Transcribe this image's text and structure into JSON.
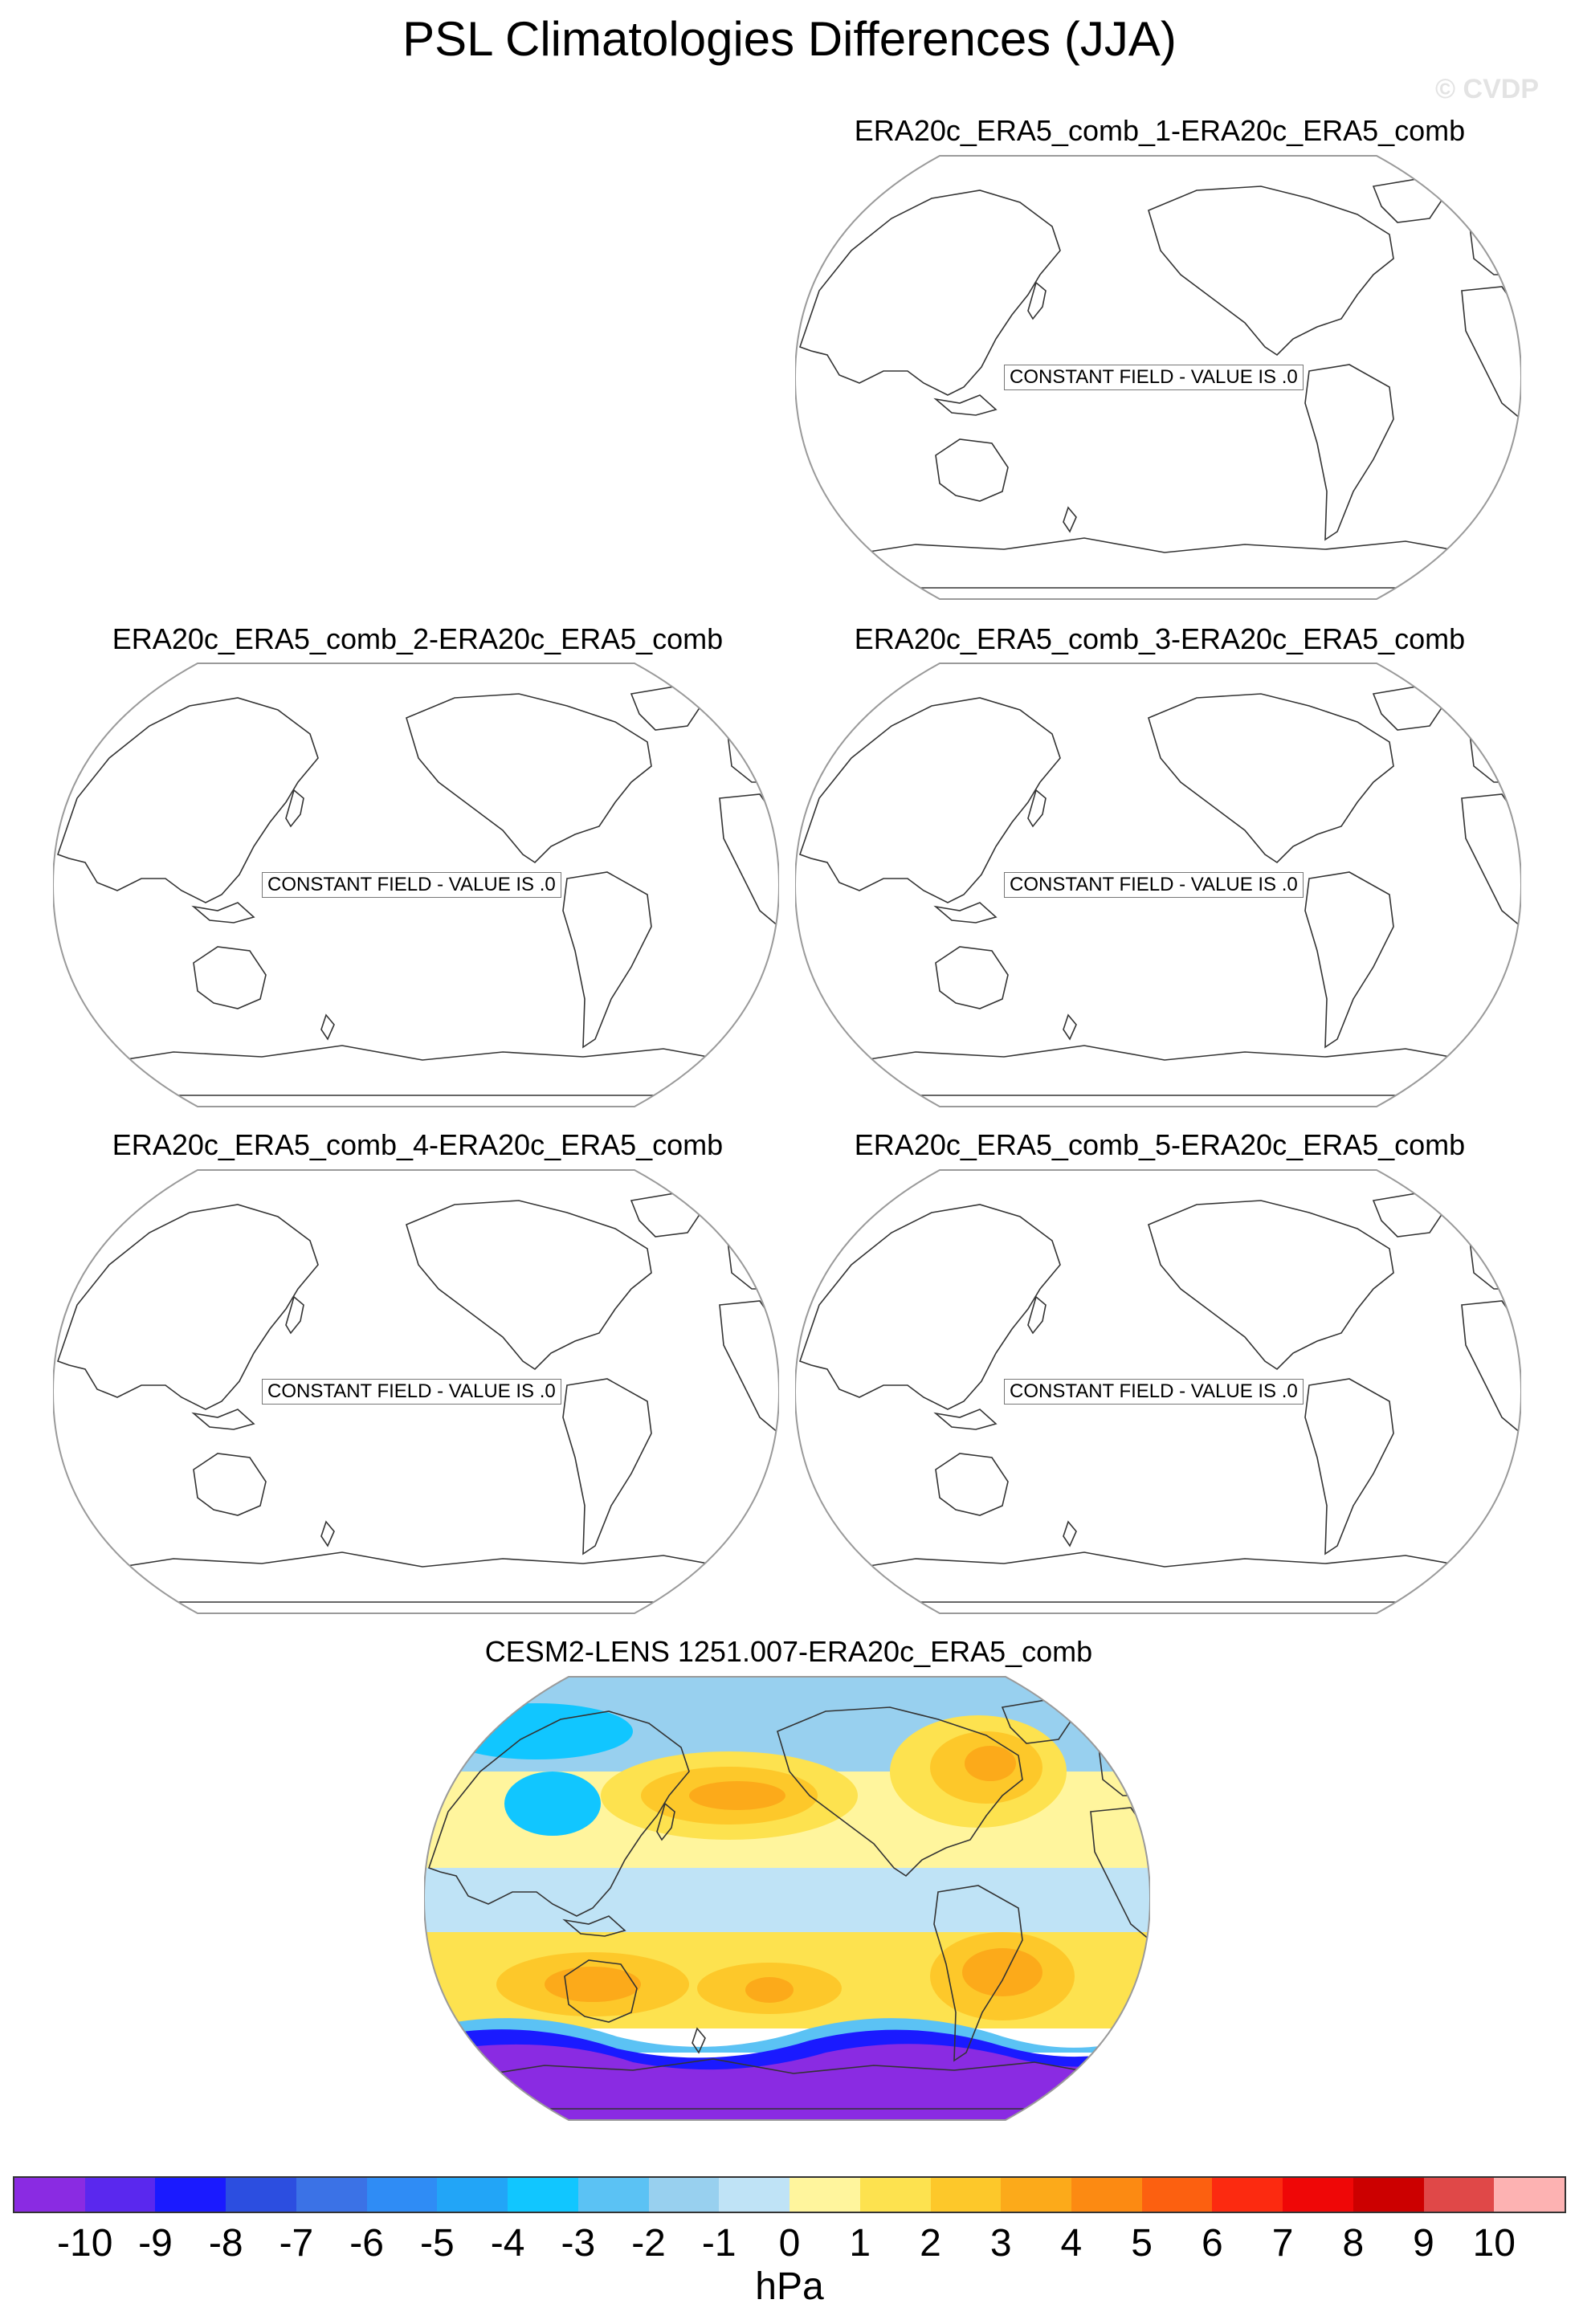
{
  "title": "PSL Climatologies Differences (JJA)",
  "credit": "© CVDP",
  "panels": [
    {
      "name": "ERA20c_ERA5_comb_1-ERA20c_ERA5_comb",
      "label": "CONSTANT FIELD - VALUE IS .0"
    },
    {
      "name": "ERA20c_ERA5_comb_2-ERA20c_ERA5_comb",
      "label": "CONSTANT FIELD - VALUE IS .0"
    },
    {
      "name": "ERA20c_ERA5_comb_3-ERA20c_ERA5_comb",
      "label": "CONSTANT FIELD - VALUE IS .0"
    },
    {
      "name": "ERA20c_ERA5_comb_4-ERA20c_ERA5_comb",
      "label": "CONSTANT FIELD - VALUE IS .0"
    },
    {
      "name": "ERA20c_ERA5_comb_5-ERA20c_ERA5_comb",
      "label": "CONSTANT FIELD - VALUE IS .0"
    },
    {
      "name": "CESM2-LENS 1251.007-ERA20c_ERA5_comb"
    }
  ],
  "colorbar": {
    "units": "hPa",
    "ticks": [
      "-10",
      "-9",
      "-8",
      "-7",
      "-6",
      "-5",
      "-4",
      "-3",
      "-2",
      "-1",
      "0",
      "1",
      "2",
      "3",
      "4",
      "5",
      "6",
      "7",
      "8",
      "9",
      "10"
    ],
    "colors": [
      "#8a2be2",
      "#5a28ee",
      "#1a1aff",
      "#2c4ee0",
      "#3b72e6",
      "#2f8cf5",
      "#22a5f7",
      "#11c6ff",
      "#5bc2f4",
      "#98d0ef",
      "#bfe3f6",
      "#fff59d",
      "#fde24f",
      "#fdc82a",
      "#fcaa1a",
      "#fc8a12",
      "#fc6010",
      "#fc2a10",
      "#ef0707",
      "#cc0000",
      "#e04848",
      "#fdb2b2"
    ]
  }
}
